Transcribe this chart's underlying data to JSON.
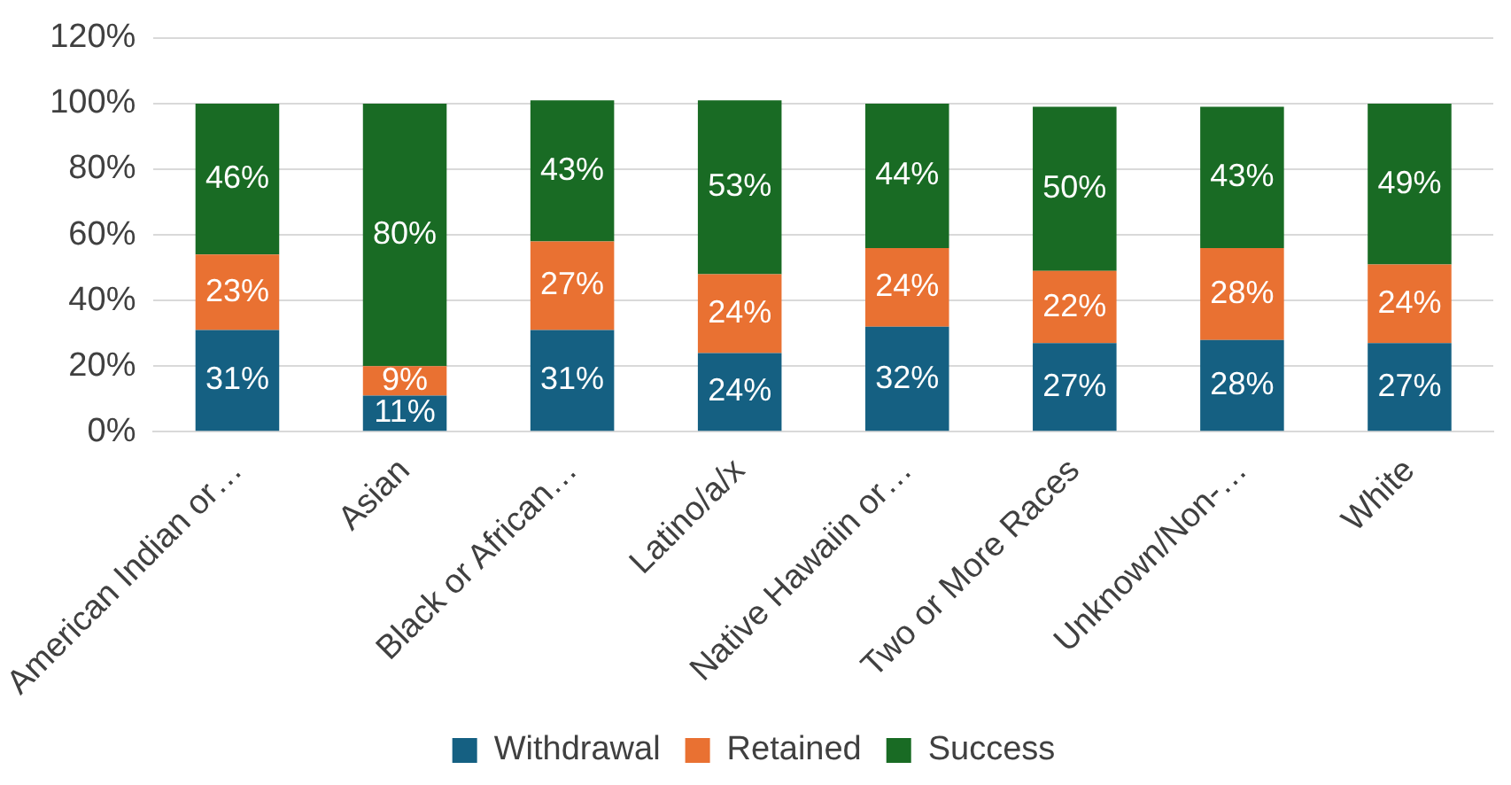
{
  "chart_data": {
    "type": "bar",
    "stacked": true,
    "categories": [
      "American Indian or…",
      "Asian",
      "Black or African…",
      "Latino/a/x",
      "Native Hawaiin or…",
      "Two or More Races",
      "Unknown/Non-…",
      "White"
    ],
    "series": [
      {
        "name": "Withdrawal",
        "color": "#156082",
        "values": [
          31,
          11,
          31,
          24,
          32,
          27,
          28,
          27
        ],
        "value_labels": [
          "31%",
          "11%",
          "31%",
          "24%",
          "32%",
          "27%",
          "28%",
          "27%"
        ]
      },
      {
        "name": "Retained",
        "color": "#e97132",
        "values": [
          23,
          9,
          27,
          24,
          24,
          22,
          28,
          24
        ],
        "value_labels": [
          "23%",
          "9%",
          "27%",
          "24%",
          "24%",
          "22%",
          "28%",
          "24%"
        ]
      },
      {
        "name": "Success",
        "color": "#196b24",
        "values": [
          46,
          80,
          43,
          53,
          44,
          50,
          43,
          49
        ],
        "value_labels": [
          "46%",
          "80%",
          "43%",
          "53%",
          "44%",
          "50%",
          "43%",
          "49%"
        ]
      }
    ],
    "ylim": [
      0,
      120
    ],
    "yticks": [
      {
        "value": 0,
        "label": "0%"
      },
      {
        "value": 20,
        "label": "20%"
      },
      {
        "value": 40,
        "label": "40%"
      },
      {
        "value": 60,
        "label": "60%"
      },
      {
        "value": 80,
        "label": "80%"
      },
      {
        "value": 100,
        "label": "100%"
      },
      {
        "value": 120,
        "label": "120%"
      }
    ],
    "grid": "y",
    "legend": "bottom"
  }
}
